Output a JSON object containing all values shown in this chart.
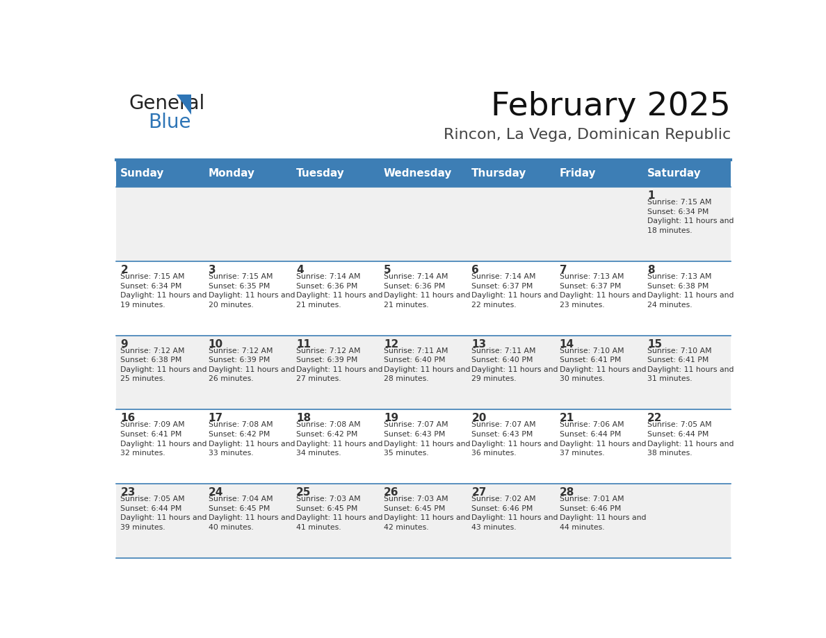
{
  "title": "February 2025",
  "subtitle": "Rincon, La Vega, Dominican Republic",
  "header_bg_color": "#3D7EB5",
  "header_text_color": "#FFFFFF",
  "day_names": [
    "Sunday",
    "Monday",
    "Tuesday",
    "Wednesday",
    "Thursday",
    "Friday",
    "Saturday"
  ],
  "week_bg_even": "#F0F0F0",
  "week_bg_odd": "#FFFFFF",
  "cell_text_color": "#333333",
  "border_color": "#3D7EB5",
  "title_color": "#111111",
  "subtitle_color": "#444444",
  "days": [
    {
      "day": 1,
      "col": 6,
      "row": 0,
      "sunrise": "7:15 AM",
      "sunset": "6:34 PM",
      "daylight": "11 hours and 18 minutes."
    },
    {
      "day": 2,
      "col": 0,
      "row": 1,
      "sunrise": "7:15 AM",
      "sunset": "6:34 PM",
      "daylight": "11 hours and 19 minutes."
    },
    {
      "day": 3,
      "col": 1,
      "row": 1,
      "sunrise": "7:15 AM",
      "sunset": "6:35 PM",
      "daylight": "11 hours and 20 minutes."
    },
    {
      "day": 4,
      "col": 2,
      "row": 1,
      "sunrise": "7:14 AM",
      "sunset": "6:36 PM",
      "daylight": "11 hours and 21 minutes."
    },
    {
      "day": 5,
      "col": 3,
      "row": 1,
      "sunrise": "7:14 AM",
      "sunset": "6:36 PM",
      "daylight": "11 hours and 21 minutes."
    },
    {
      "day": 6,
      "col": 4,
      "row": 1,
      "sunrise": "7:14 AM",
      "sunset": "6:37 PM",
      "daylight": "11 hours and 22 minutes."
    },
    {
      "day": 7,
      "col": 5,
      "row": 1,
      "sunrise": "7:13 AM",
      "sunset": "6:37 PM",
      "daylight": "11 hours and 23 minutes."
    },
    {
      "day": 8,
      "col": 6,
      "row": 1,
      "sunrise": "7:13 AM",
      "sunset": "6:38 PM",
      "daylight": "11 hours and 24 minutes."
    },
    {
      "day": 9,
      "col": 0,
      "row": 2,
      "sunrise": "7:12 AM",
      "sunset": "6:38 PM",
      "daylight": "11 hours and 25 minutes."
    },
    {
      "day": 10,
      "col": 1,
      "row": 2,
      "sunrise": "7:12 AM",
      "sunset": "6:39 PM",
      "daylight": "11 hours and 26 minutes."
    },
    {
      "day": 11,
      "col": 2,
      "row": 2,
      "sunrise": "7:12 AM",
      "sunset": "6:39 PM",
      "daylight": "11 hours and 27 minutes."
    },
    {
      "day": 12,
      "col": 3,
      "row": 2,
      "sunrise": "7:11 AM",
      "sunset": "6:40 PM",
      "daylight": "11 hours and 28 minutes."
    },
    {
      "day": 13,
      "col": 4,
      "row": 2,
      "sunrise": "7:11 AM",
      "sunset": "6:40 PM",
      "daylight": "11 hours and 29 minutes."
    },
    {
      "day": 14,
      "col": 5,
      "row": 2,
      "sunrise": "7:10 AM",
      "sunset": "6:41 PM",
      "daylight": "11 hours and 30 minutes."
    },
    {
      "day": 15,
      "col": 6,
      "row": 2,
      "sunrise": "7:10 AM",
      "sunset": "6:41 PM",
      "daylight": "11 hours and 31 minutes."
    },
    {
      "day": 16,
      "col": 0,
      "row": 3,
      "sunrise": "7:09 AM",
      "sunset": "6:41 PM",
      "daylight": "11 hours and 32 minutes."
    },
    {
      "day": 17,
      "col": 1,
      "row": 3,
      "sunrise": "7:08 AM",
      "sunset": "6:42 PM",
      "daylight": "11 hours and 33 minutes."
    },
    {
      "day": 18,
      "col": 2,
      "row": 3,
      "sunrise": "7:08 AM",
      "sunset": "6:42 PM",
      "daylight": "11 hours and 34 minutes."
    },
    {
      "day": 19,
      "col": 3,
      "row": 3,
      "sunrise": "7:07 AM",
      "sunset": "6:43 PM",
      "daylight": "11 hours and 35 minutes."
    },
    {
      "day": 20,
      "col": 4,
      "row": 3,
      "sunrise": "7:07 AM",
      "sunset": "6:43 PM",
      "daylight": "11 hours and 36 minutes."
    },
    {
      "day": 21,
      "col": 5,
      "row": 3,
      "sunrise": "7:06 AM",
      "sunset": "6:44 PM",
      "daylight": "11 hours and 37 minutes."
    },
    {
      "day": 22,
      "col": 6,
      "row": 3,
      "sunrise": "7:05 AM",
      "sunset": "6:44 PM",
      "daylight": "11 hours and 38 minutes."
    },
    {
      "day": 23,
      "col": 0,
      "row": 4,
      "sunrise": "7:05 AM",
      "sunset": "6:44 PM",
      "daylight": "11 hours and 39 minutes."
    },
    {
      "day": 24,
      "col": 1,
      "row": 4,
      "sunrise": "7:04 AM",
      "sunset": "6:45 PM",
      "daylight": "11 hours and 40 minutes."
    },
    {
      "day": 25,
      "col": 2,
      "row": 4,
      "sunrise": "7:03 AM",
      "sunset": "6:45 PM",
      "daylight": "11 hours and 41 minutes."
    },
    {
      "day": 26,
      "col": 3,
      "row": 4,
      "sunrise": "7:03 AM",
      "sunset": "6:45 PM",
      "daylight": "11 hours and 42 minutes."
    },
    {
      "day": 27,
      "col": 4,
      "row": 4,
      "sunrise": "7:02 AM",
      "sunset": "6:46 PM",
      "daylight": "11 hours and 43 minutes."
    },
    {
      "day": 28,
      "col": 5,
      "row": 4,
      "sunrise": "7:01 AM",
      "sunset": "6:46 PM",
      "daylight": "11 hours and 44 minutes."
    }
  ],
  "num_rows": 5,
  "num_cols": 7,
  "logo_general_color": "#222222",
  "logo_blue_color": "#2E75B6",
  "logo_triangle_color": "#2E75B6"
}
